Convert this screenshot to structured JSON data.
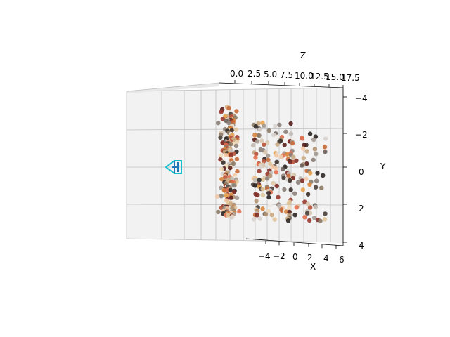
{
  "chart_data": {
    "type": "scatter",
    "projection": "3d",
    "axes": {
      "x": {
        "label": "X",
        "ticks": [
          "−4",
          "−2",
          "0",
          "2",
          "4",
          "6"
        ],
        "lim": [
          -5.5,
          6.5
        ]
      },
      "y": {
        "label": "Y",
        "ticks": [
          "−4",
          "−2",
          "0",
          "2",
          "4"
        ],
        "lim": [
          -4,
          4
        ]
      },
      "z": {
        "label": "Z",
        "ticks": [
          "0.0",
          "2.5",
          "5.0",
          "7.5",
          "10.0",
          "12.5",
          "15.0",
          "17.5"
        ],
        "lim": [
          -1.5,
          17.5
        ]
      }
    },
    "grid": true,
    "camera_glyph": {
      "color": "#1f77b4",
      "accent": "#17becf",
      "x": -1,
      "y": 0,
      "z": 0
    },
    "palette": [
      "#2b2622",
      "#4a403a",
      "#6d625a",
      "#8b8078",
      "#a49a92",
      "#c2bab4",
      "#d9d3cf",
      "#f1ece7",
      "#b39473",
      "#c9a982",
      "#e0c49a",
      "#f0d9b8",
      "#e8a24e",
      "#d9853b",
      "#c76a3a",
      "#b9523a",
      "#9a3a2f",
      "#7e2a24",
      "#5a1f1b",
      "#e07050",
      "#f3c9a5",
      "#d8c7b0",
      "#8c7a66",
      "#3b2f2a"
    ],
    "point_count": 420,
    "seed": 7
  }
}
